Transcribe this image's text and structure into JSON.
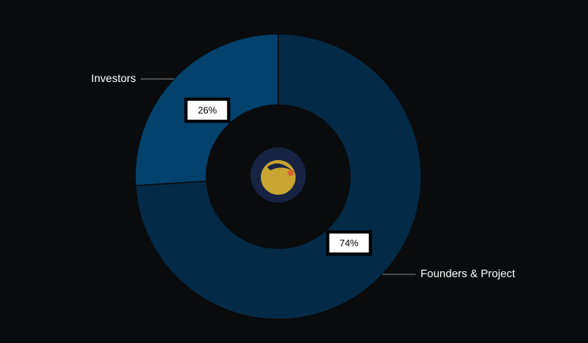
{
  "chart_data": {
    "type": "donut",
    "categories": [
      "Founders & Project",
      "Investors"
    ],
    "values": [
      74,
      26
    ],
    "value_labels": [
      "74%",
      "26%"
    ],
    "colors": [
      "#032b47",
      "#02426d"
    ]
  }
}
